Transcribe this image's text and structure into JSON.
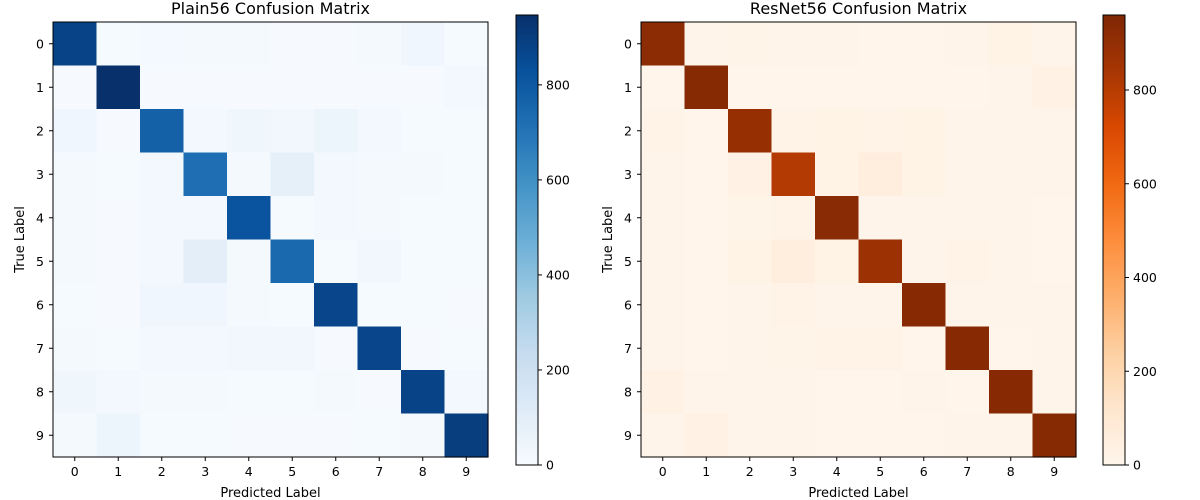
{
  "chart_data": [
    {
      "type": "heatmap",
      "title": "Plain56 Confusion Matrix",
      "xlabel": "Predicted Label",
      "ylabel": "True Label",
      "categories": [
        "0",
        "1",
        "2",
        "3",
        "4",
        "5",
        "6",
        "7",
        "8",
        "9"
      ],
      "colormap": "Blues",
      "colors": [
        "#f7fbff",
        "#deebf7",
        "#c6dbef",
        "#9ecae1",
        "#6baed6",
        "#4292c6",
        "#2171b5",
        "#08519c",
        "#08306b"
      ],
      "vmin": 0,
      "vmax": 947,
      "colorbar_ticks": [
        0,
        200,
        400,
        600,
        800
      ],
      "matrix": [
        [
          880,
          10,
          18,
          15,
          15,
          5,
          5,
          15,
          35,
          10
        ],
        [
          5,
          947,
          5,
          5,
          5,
          5,
          5,
          5,
          5,
          25
        ],
        [
          35,
          5,
          770,
          25,
          40,
          30,
          45,
          20,
          10,
          10
        ],
        [
          15,
          8,
          25,
          720,
          15,
          85,
          20,
          15,
          15,
          8
        ],
        [
          12,
          5,
          25,
          20,
          820,
          10,
          20,
          15,
          10,
          8
        ],
        [
          15,
          5,
          25,
          95,
          15,
          745,
          10,
          30,
          10,
          8
        ],
        [
          10,
          5,
          35,
          35,
          15,
          8,
          870,
          8,
          8,
          5
        ],
        [
          15,
          8,
          20,
          20,
          30,
          30,
          5,
          870,
          5,
          10
        ],
        [
          40,
          20,
          15,
          15,
          10,
          10,
          15,
          5,
          880,
          20
        ],
        [
          15,
          45,
          8,
          8,
          5,
          5,
          5,
          10,
          15,
          900
        ]
      ]
    },
    {
      "type": "heatmap",
      "title": "ResNet56 Confusion Matrix",
      "xlabel": "Predicted Label",
      "ylabel": "True Label",
      "categories": [
        "0",
        "1",
        "2",
        "3",
        "4",
        "5",
        "6",
        "7",
        "8",
        "9"
      ],
      "colormap": "Oranges",
      "colors": [
        "#fff5eb",
        "#fee6ce",
        "#fdd0a2",
        "#fdae6b",
        "#fd8d3c",
        "#f16913",
        "#d94801",
        "#a63603",
        "#7f2704"
      ],
      "vmin": 0,
      "vmax": 960,
      "colorbar_ticks": [
        0,
        200,
        400,
        600,
        800
      ],
      "matrix": [
        [
          920,
          5,
          12,
          5,
          8,
          2,
          3,
          5,
          20,
          10
        ],
        [
          3,
          940,
          2,
          2,
          2,
          2,
          2,
          2,
          8,
          30
        ],
        [
          15,
          2,
          890,
          15,
          20,
          15,
          20,
          10,
          5,
          5
        ],
        [
          8,
          3,
          25,
          810,
          20,
          60,
          20,
          10,
          8,
          5
        ],
        [
          5,
          2,
          12,
          15,
          930,
          10,
          10,
          10,
          5,
          2
        ],
        [
          5,
          2,
          20,
          60,
          20,
          870,
          10,
          15,
          5,
          3
        ],
        [
          5,
          3,
          10,
          15,
          10,
          5,
          935,
          5,
          5,
          5
        ],
        [
          5,
          2,
          8,
          12,
          15,
          15,
          2,
          935,
          2,
          5
        ],
        [
          25,
          5,
          5,
          5,
          2,
          2,
          5,
          2,
          935,
          10
        ],
        [
          8,
          30,
          5,
          5,
          2,
          2,
          2,
          5,
          10,
          940
        ]
      ]
    }
  ]
}
